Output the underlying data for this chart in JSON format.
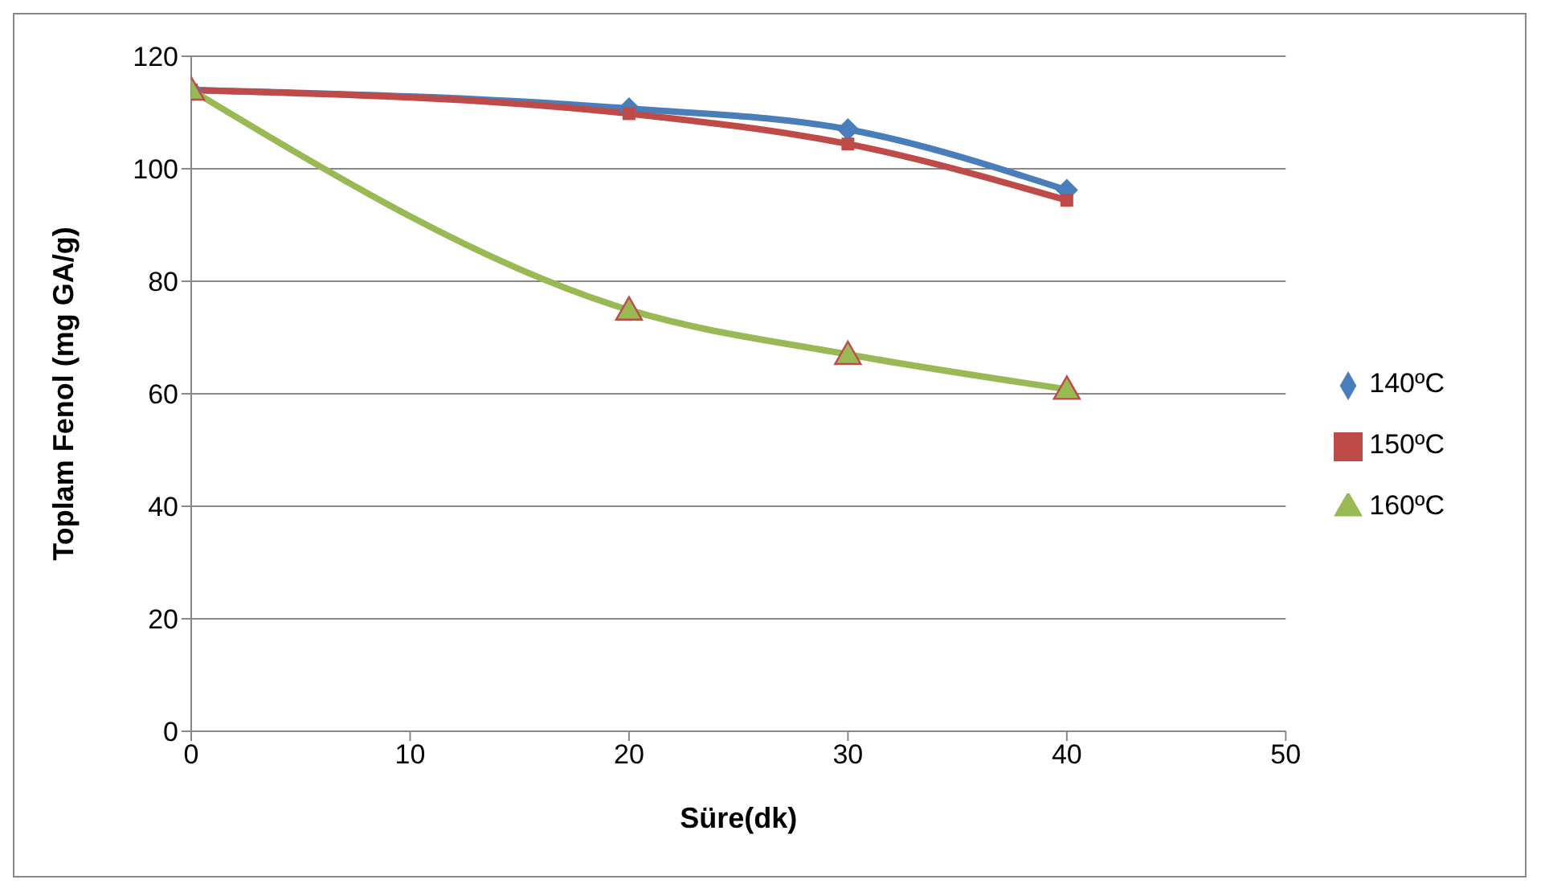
{
  "chart_data": {
    "type": "line",
    "xlabel": "Süre(dk)",
    "ylabel": "Toplam Fenol (mg GA/g)",
    "x": [
      0,
      20,
      30,
      40
    ],
    "series": [
      {
        "name": "140ºC",
        "color": "#4a7ebb",
        "values": [
          114,
          110.7,
          107,
          96.2
        ],
        "marker": "diamond"
      },
      {
        "name": "150ºC",
        "color": "#be4b48",
        "values": [
          114,
          109.8,
          104.4,
          94.4
        ],
        "marker": "square"
      },
      {
        "name": "160ºC",
        "color": "#98b954",
        "values": [
          114,
          74.9,
          67,
          60.8
        ],
        "marker": "triangle"
      }
    ],
    "xlim": [
      0,
      50
    ],
    "xticks": [
      0,
      10,
      20,
      30,
      40,
      50
    ],
    "ylim": [
      0,
      120
    ],
    "yticks": [
      0,
      20,
      40,
      60,
      80,
      100,
      120
    ],
    "grid": "y",
    "legend": "right",
    "line_style": "solid"
  }
}
